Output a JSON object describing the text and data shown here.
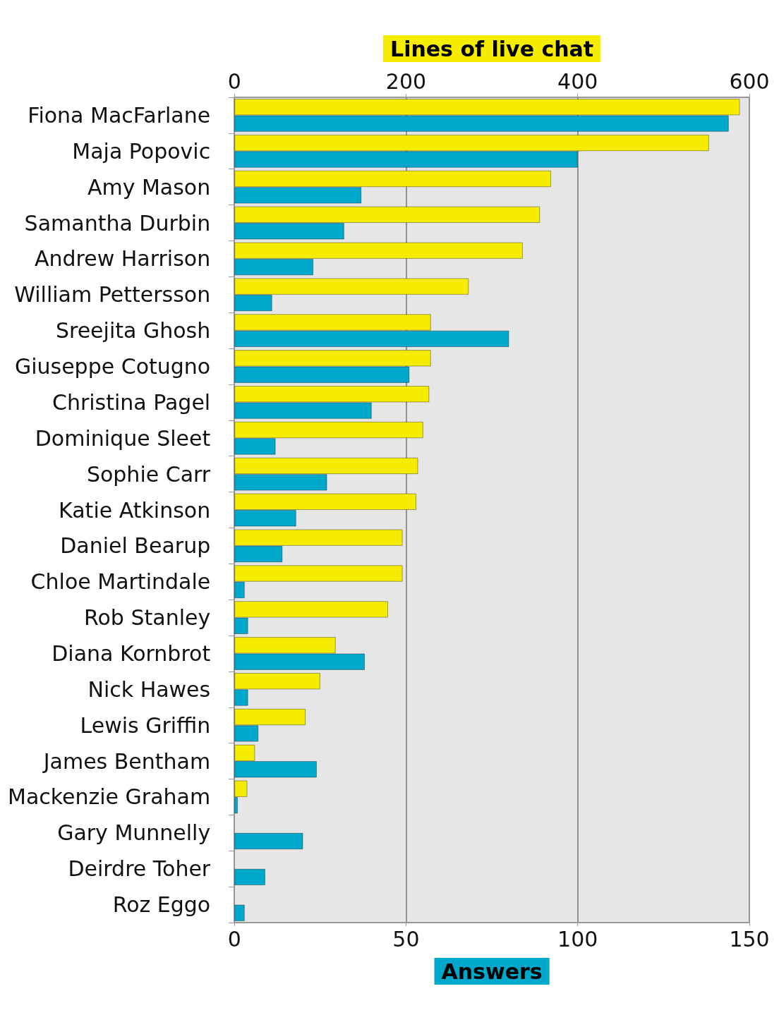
{
  "chart_data": {
    "type": "bar",
    "orientation": "horizontal",
    "xlabel": "Answers",
    "x2label": "Lines of live chat",
    "categories": [
      "Fiona MacFarlane",
      "Maja Popovic",
      "Amy Mason",
      "Samantha Durbin",
      "Andrew Harrison",
      "William Pettersson",
      "Sreejita Ghosh",
      "Giuseppe Cotugno",
      "Christina Pagel",
      "Dominique Sleet",
      "Sophie Carr",
      "Katie Atkinson",
      "Daniel Bearup",
      "Chloe Martindale",
      "Rob Stanley",
      "Diana Kornbrot",
      "Nick Hawes",
      "Lewis Griffin",
      "James Bentham",
      "Mackenzie Graham",
      "Gary Munnelly",
      "Deirdre Toher",
      "Roz Eggo"
    ],
    "series": [
      {
        "axis": "x2",
        "color": "#f5ec00",
        "values": [
          589,
          553,
          369,
          356,
          336,
          273,
          229,
          229,
          227,
          220,
          214,
          212,
          196,
          196,
          179,
          118,
          100,
          83,
          24,
          15,
          null,
          null,
          null
        ]
      },
      {
        "color": "#00a8cc",
        "values": [
          144,
          100,
          37,
          32,
          23,
          11,
          80,
          51,
          40,
          12,
          27,
          18,
          14,
          3,
          4,
          38,
          4,
          7,
          24,
          1,
          20,
          9,
          3
        ]
      }
    ],
    "xlim": [
      0,
      150
    ],
    "xticks": [
      0,
      50,
      100,
      150
    ],
    "x2lim": [
      0,
      600
    ],
    "x2ticks": [
      0,
      200,
      400,
      600
    ],
    "grid": "x"
  }
}
